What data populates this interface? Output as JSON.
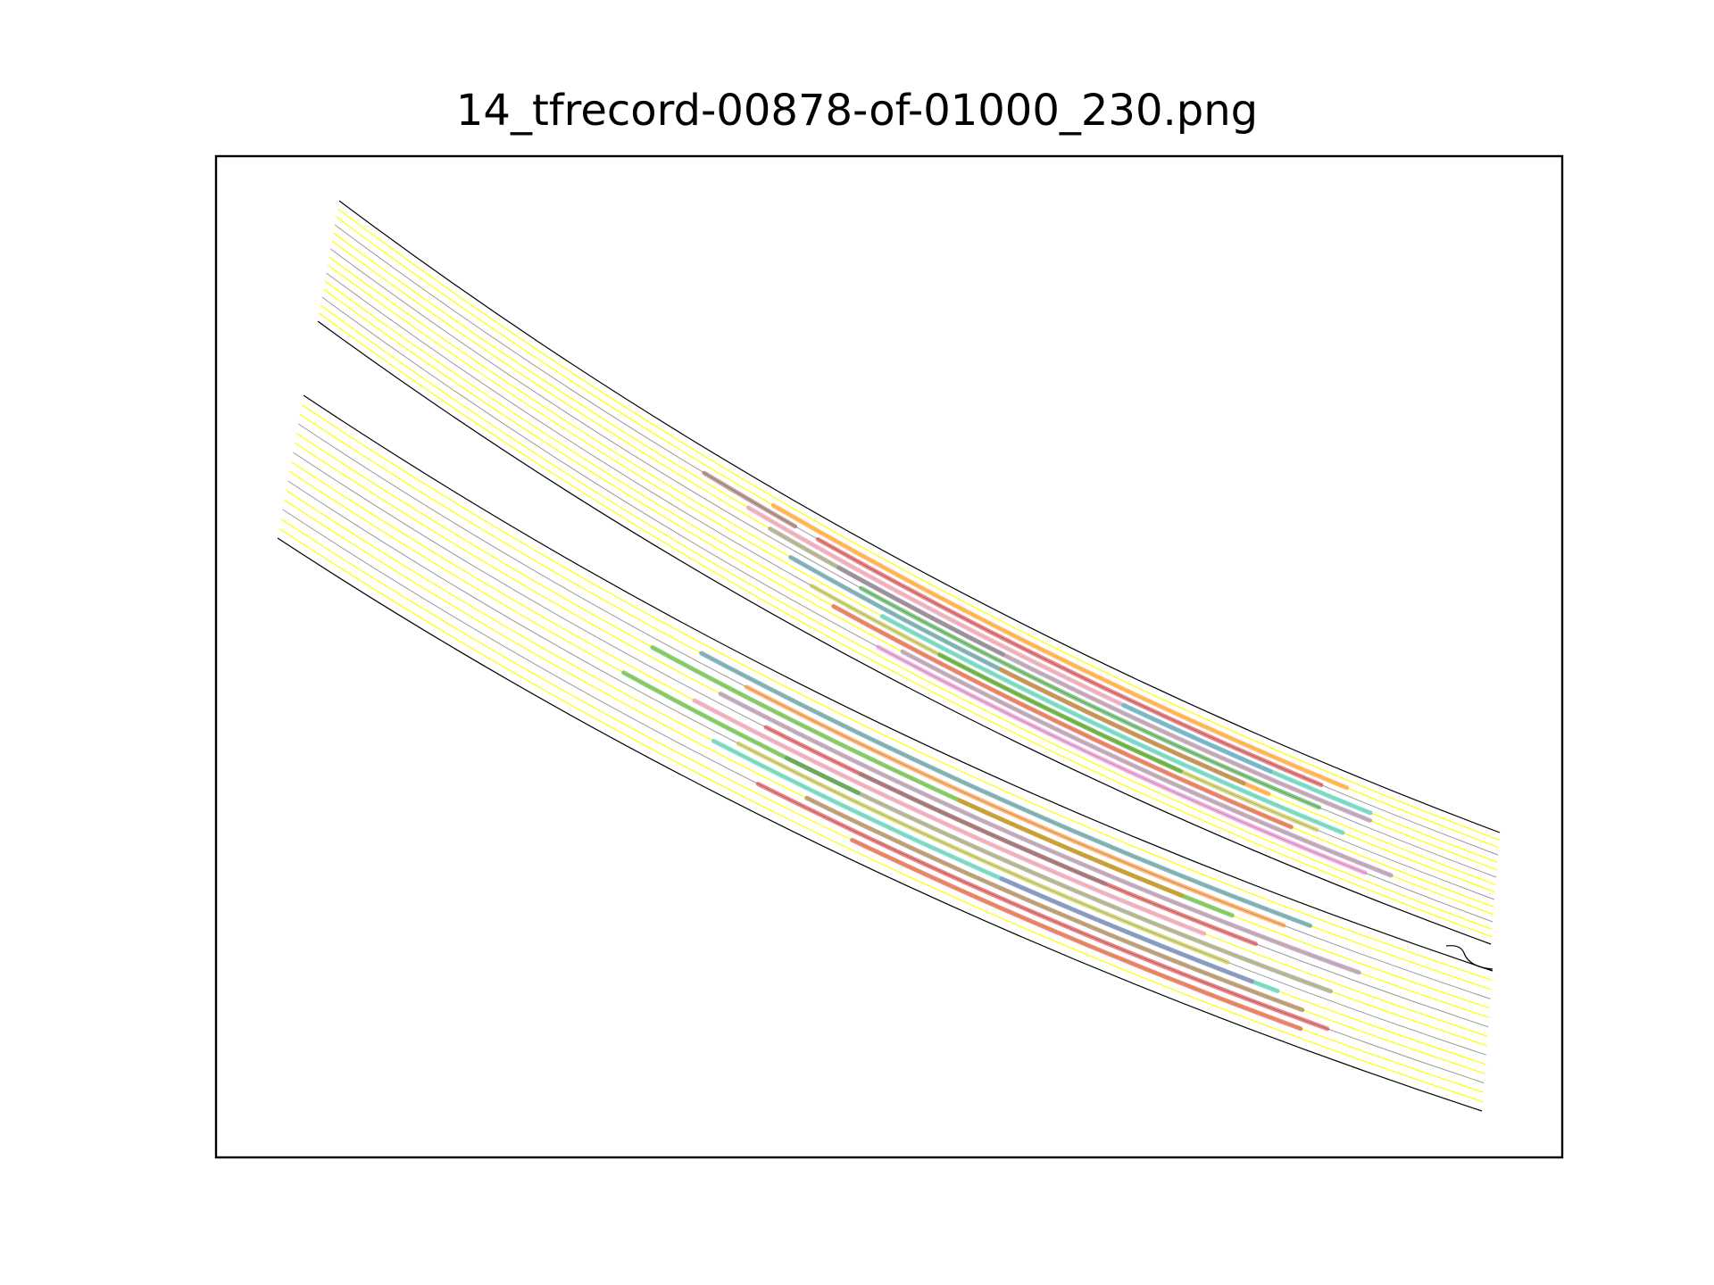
{
  "figure": {
    "title": "14_tfrecord-00878-of-01000_230.png"
  },
  "colors": {
    "road_edge": "#000000",
    "lane_line": "#999999",
    "lane_marking": "#ffff00",
    "frame": "#000000",
    "background": "#ffffff"
  },
  "track_palette": [
    "#1f77b4",
    "#ff7f0e",
    "#2ca02c",
    "#d62728",
    "#9467bd",
    "#8c564b",
    "#e377c2",
    "#7f7f7f",
    "#bcbd22",
    "#17becf"
  ]
}
